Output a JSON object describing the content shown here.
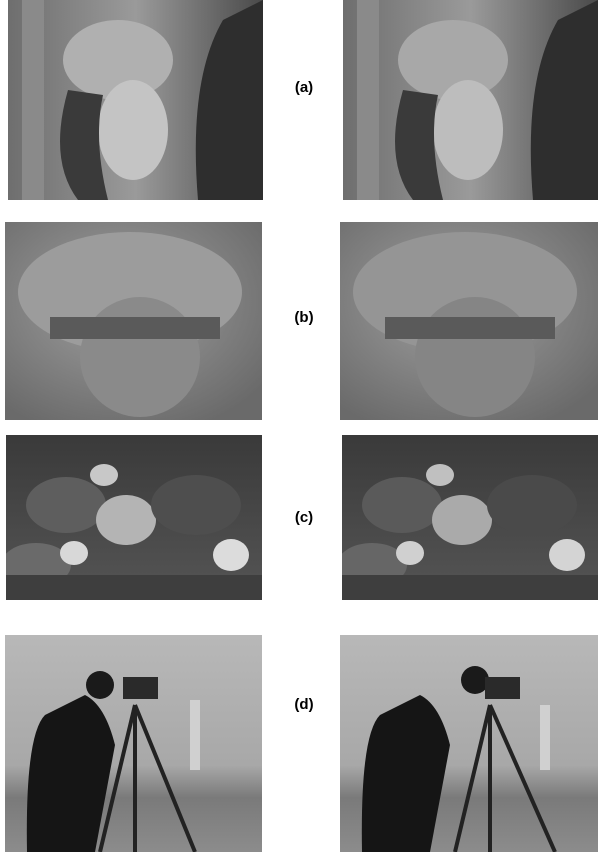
{
  "rows": [
    {
      "label": "(a)"
    },
    {
      "label": "(b)"
    },
    {
      "label": "(c)"
    },
    {
      "label": "(d)"
    }
  ]
}
